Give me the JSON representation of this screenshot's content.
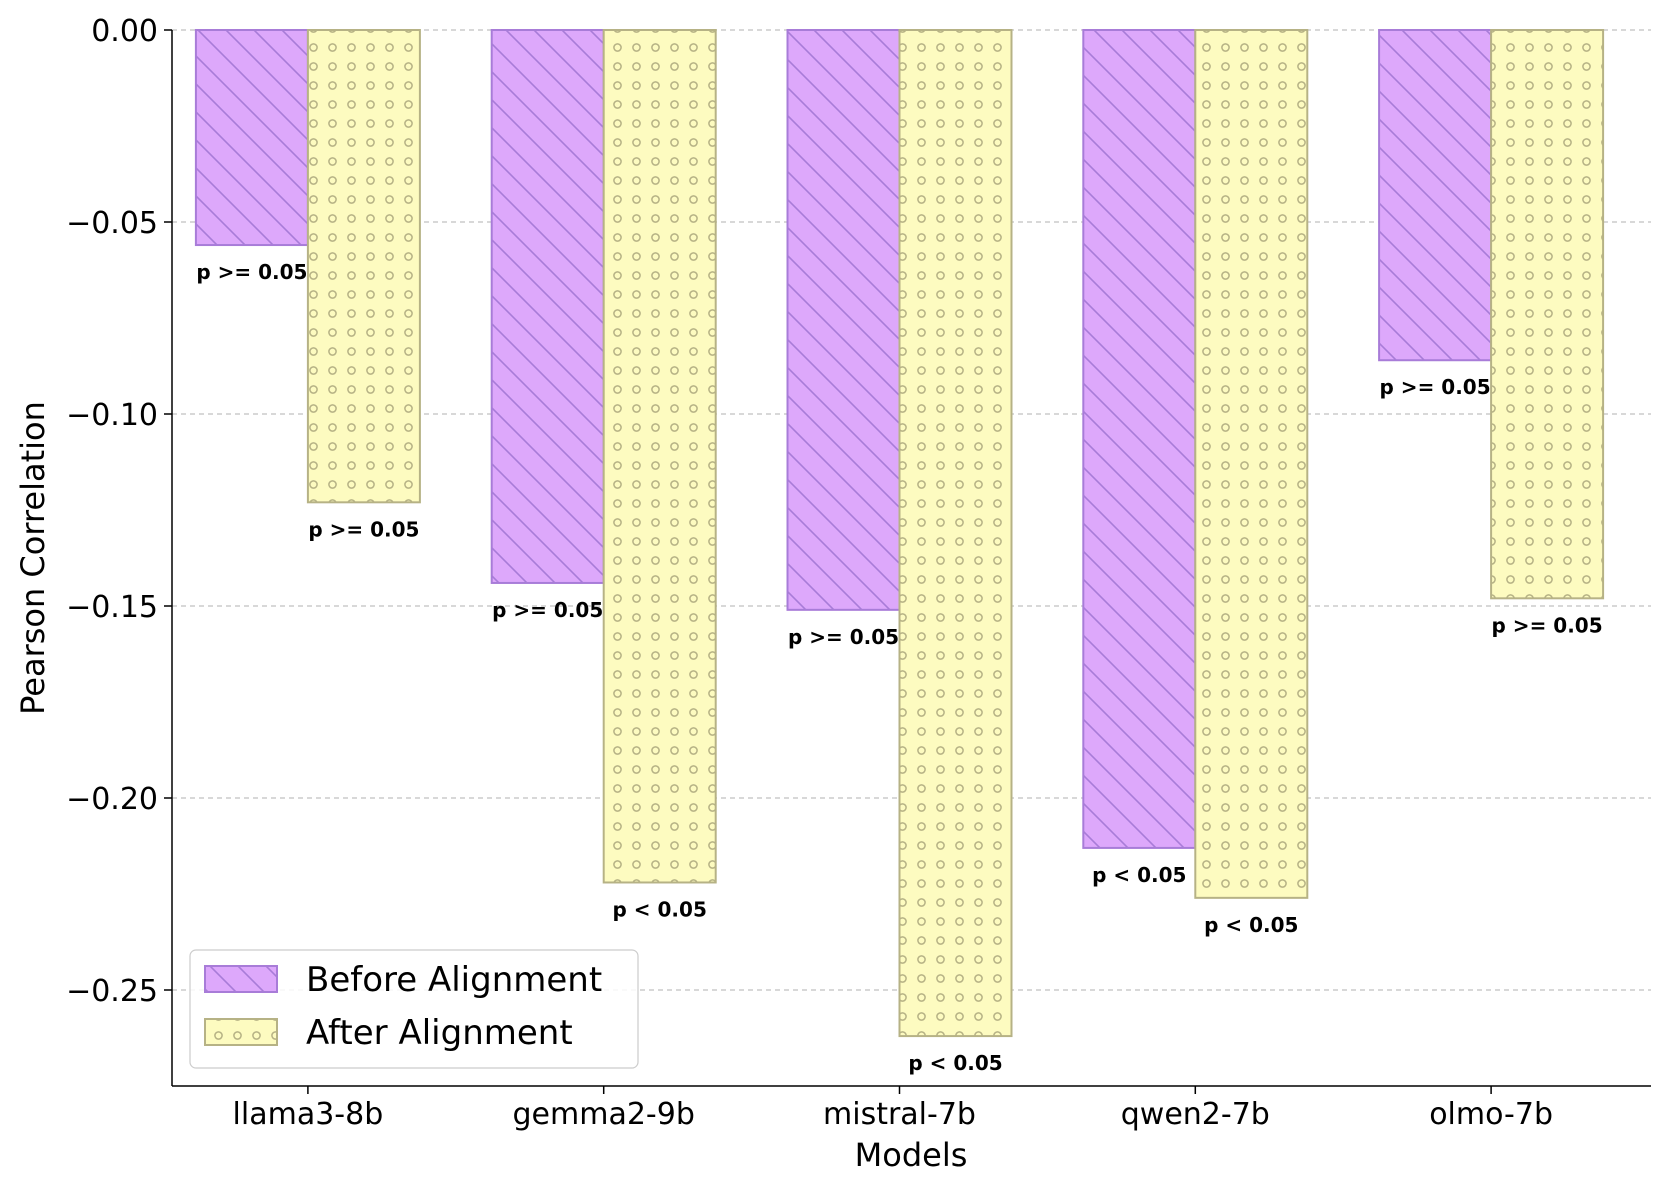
{
  "chart_data": {
    "type": "bar",
    "title": "",
    "xlabel": "Models",
    "ylabel": "Pearson Correlation",
    "categories": [
      "llama3-8b",
      "gemma2-9b",
      "mistral-7b",
      "qwen2-7b",
      "olmo-7b"
    ],
    "ylim": [
      -0.275,
      0.0
    ],
    "yticks": [
      0.0,
      -0.05,
      -0.1,
      -0.15,
      -0.2,
      -0.25
    ],
    "ytick_labels": [
      "0.00",
      "−0.05",
      "−0.10",
      "−0.15",
      "−0.20",
      "−0.25"
    ],
    "grid": "y-dashed",
    "legend_position": "lower-left",
    "series": [
      {
        "name": "Before Alignment",
        "color": "#dda8fb",
        "edge_color": "#a87cd8",
        "hatch": "diagonal",
        "values": [
          -0.056,
          -0.144,
          -0.151,
          -0.213,
          -0.086
        ],
        "p_labels": [
          "p >= 0.05",
          "p >= 0.05",
          "p >= 0.05",
          "p < 0.05",
          "p >= 0.05"
        ]
      },
      {
        "name": "After Alignment",
        "color": "#fdfbc0",
        "edge_color": "#b6b285",
        "hatch": "circles",
        "values": [
          -0.123,
          -0.222,
          -0.262,
          -0.226,
          -0.148
        ],
        "p_labels": [
          "p >= 0.05",
          "p < 0.05",
          "p < 0.05",
          "p < 0.05",
          "p >= 0.05"
        ]
      }
    ]
  }
}
